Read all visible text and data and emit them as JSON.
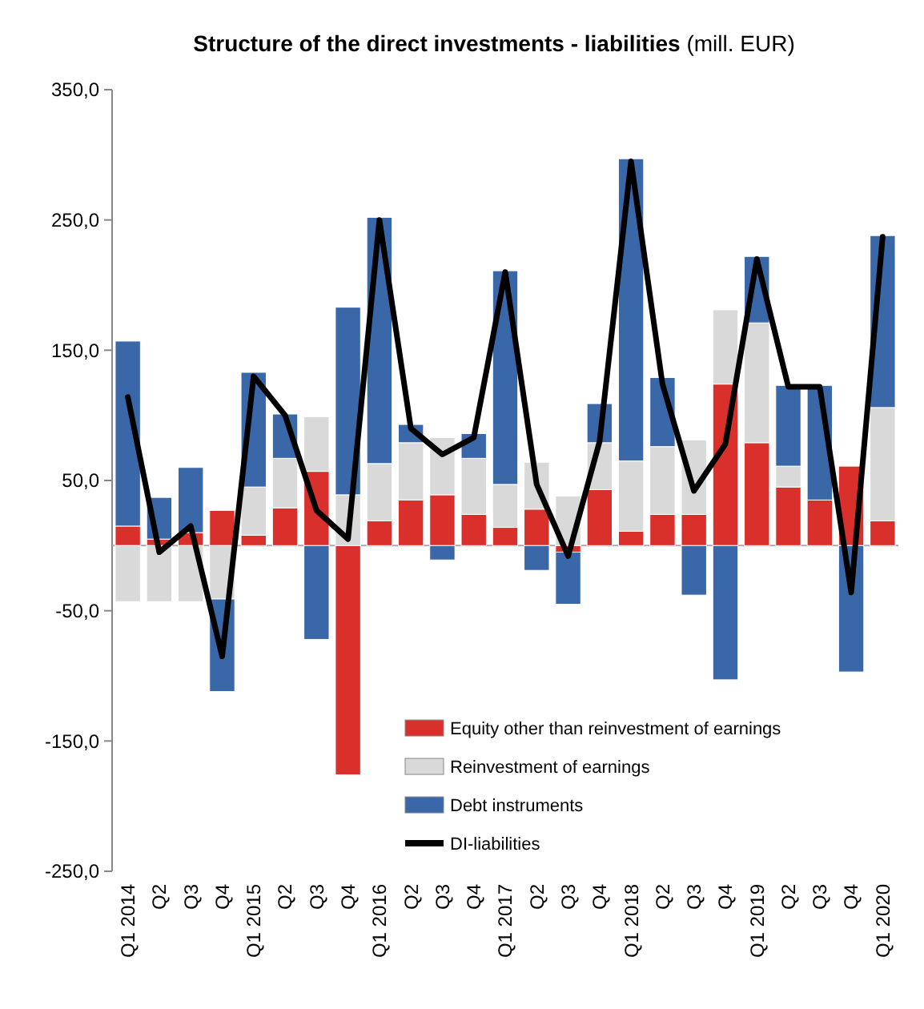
{
  "chart_data": {
    "type": "bar",
    "stacked": true,
    "title": "Structure of the direct investments - liabilities",
    "subtitle": "(mill. EUR)",
    "categories": [
      "Q1 2014",
      "Q2",
      "Q3",
      "Q4",
      "Q1 2015",
      "Q2",
      "Q3",
      "Q4",
      "Q1 2016",
      "Q2",
      "Q3",
      "Q4",
      "Q1 2017",
      "Q2",
      "Q3",
      "Q4",
      "Q1 2018",
      "Q2",
      "Q3",
      "Q4",
      "Q1 2019",
      "Q2",
      "Q3",
      "Q4",
      "Q1 2020"
    ],
    "series": [
      {
        "name": "Equity other than reinvestment of earnings",
        "color": "#d9302c",
        "values": [
          15,
          5,
          10,
          27,
          8,
          29,
          57,
          -176,
          19,
          35,
          39,
          24,
          14,
          28,
          -5,
          43,
          11,
          24,
          24,
          124,
          79,
          45,
          35,
          61,
          19
        ]
      },
      {
        "name": "Reinvestment of earnings",
        "color": "#d9d9d9",
        "values": [
          -43,
          -43,
          -43,
          -41,
          37,
          38,
          42,
          39,
          44,
          44,
          44,
          43,
          33,
          36,
          38,
          36,
          54,
          52,
          57,
          57,
          92,
          16,
          0,
          0,
          87
        ]
      },
      {
        "name": "Debt instruments",
        "color": "#3a67a8",
        "values": [
          142,
          32,
          50,
          -71,
          88,
          34,
          -72,
          144,
          189,
          14,
          -11,
          19,
          164,
          -19,
          -40,
          30,
          232,
          53,
          -38,
          -103,
          51,
          62,
          88,
          -97,
          132
        ]
      },
      {
        "name": "DI-liabilities",
        "type": "line",
        "color": "#000000",
        "values": [
          114,
          -5,
          15,
          -85,
          130,
          100,
          27,
          5,
          250,
          90,
          70,
          83,
          210,
          47,
          -8,
          80,
          295,
          124,
          42,
          78,
          220,
          122,
          122,
          -36,
          237
        ]
      }
    ],
    "ylim": [
      -250,
      350
    ],
    "yticks": [
      {
        "value": -250,
        "label": "-250,0"
      },
      {
        "value": -150,
        "label": "-150,0"
      },
      {
        "value": -50,
        "label": "-50,0"
      },
      {
        "value": 50,
        "label": "50,0"
      },
      {
        "value": 150,
        "label": "150,0"
      },
      {
        "value": 250,
        "label": "250,0"
      },
      {
        "value": 350,
        "label": "350,0"
      }
    ],
    "legend": "bottom",
    "grid": false
  }
}
